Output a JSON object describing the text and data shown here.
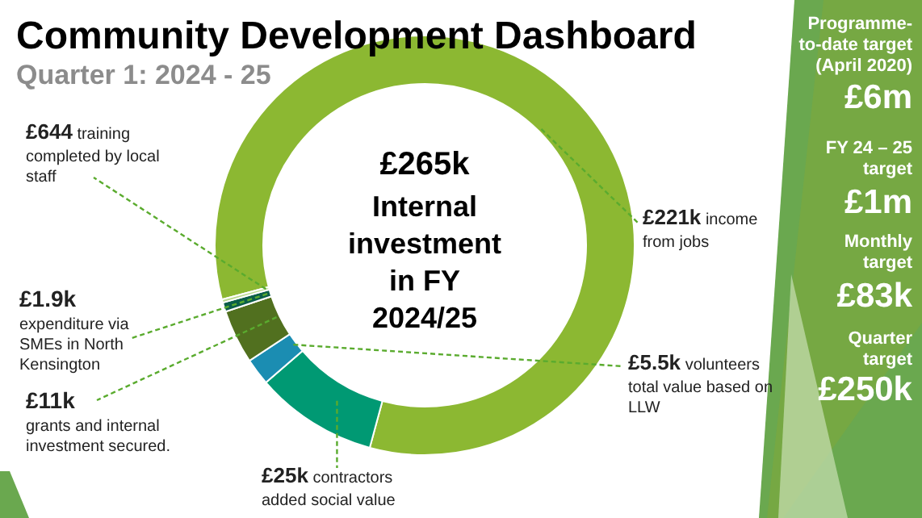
{
  "chart_data": {
    "type": "donut",
    "title": "Community Development Dashboard",
    "subtitle": "Quarter 1: 2024 - 25",
    "categories": [
      "income\nfrom jobs",
      "contractors\nadded social value",
      "volunteers\ntotal value based on\nLLW",
      "grants and internal\ninvestment secured.",
      "expenditure via\nSMEs in North\nKensington",
      "training\ncompleted by local\nstaff"
    ],
    "values": [
      221000,
      25000,
      5500,
      11000,
      1900,
      644
    ],
    "value_labels": [
      "£221k",
      "£25k",
      "£5.5k",
      "£11k",
      "£1.9k",
      "£644"
    ],
    "colors": [
      "#8cb832",
      "#009973",
      "#1b8db2",
      "#51701f",
      "#0b5e49",
      "#b8d88e"
    ],
    "annotations": [
      "£265k\nInternal\ninvestment\nin FY\n2024/25",
      "Programme-\nto-date target\n(April 2020)",
      "£6m",
      "FY 24 – 25\ntarget",
      "£1m",
      "Monthly\ntarget",
      "£83k",
      "Quarter\ntarget",
      "£250k"
    ]
  }
}
